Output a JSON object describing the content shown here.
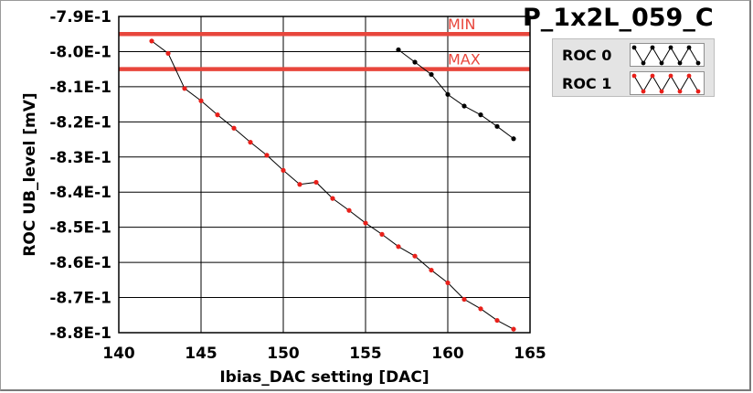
{
  "chart_data": {
    "type": "line",
    "title": "P_1x2L_059_C",
    "xlabel": "Ibias_DAC setting [DAC]",
    "ylabel": "ROC UB_level [mV]",
    "xlim": [
      140,
      165
    ],
    "ylim": [
      -0.88,
      -0.79
    ],
    "x_ticks": [
      140,
      145,
      150,
      155,
      160,
      165
    ],
    "y_ticks": [
      -0.79,
      -0.8,
      -0.81,
      -0.82,
      -0.83,
      -0.84,
      -0.85,
      -0.86,
      -0.87,
      -0.88
    ],
    "x_tick_labels": [
      "140",
      "145",
      "150",
      "155",
      "160",
      "165"
    ],
    "y_tick_labels": [
      "-7.9E-1",
      "-8.0E-1",
      "-8.1E-1",
      "-8.2E-1",
      "-8.3E-1",
      "-8.4E-1",
      "-8.5E-1",
      "-8.6E-1",
      "-8.7E-1",
      "-8.8E-1"
    ],
    "grid": true,
    "legend_placement": "right-top",
    "reference_lines": [
      {
        "label": "MIN",
        "y": -0.795,
        "color": "#e8463c"
      },
      {
        "label": "MAX",
        "y": -0.805,
        "color": "#e8463c"
      }
    ],
    "series": [
      {
        "name": "ROC 0",
        "color": "#000000",
        "x": [
          157,
          158,
          159,
          160,
          161,
          162,
          163,
          164
        ],
        "y": [
          -0.7995,
          -0.803,
          -0.8065,
          -0.8122,
          -0.8155,
          -0.818,
          -0.8213,
          -0.8248
        ]
      },
      {
        "name": "ROC 1",
        "color": "#e8201a",
        "x": [
          142,
          143,
          144,
          145,
          146,
          147,
          148,
          149,
          150,
          151,
          152,
          153,
          154,
          155,
          156,
          157,
          158,
          159,
          160,
          161,
          162,
          163,
          164
        ],
        "y": [
          -0.797,
          -0.8005,
          -0.8105,
          -0.814,
          -0.818,
          -0.8218,
          -0.8258,
          -0.8295,
          -0.8338,
          -0.8378,
          -0.8372,
          -0.8418,
          -0.8452,
          -0.8488,
          -0.852,
          -0.8555,
          -0.8582,
          -0.8622,
          -0.8658,
          -0.8705,
          -0.8732,
          -0.8765,
          -0.879
        ]
      }
    ]
  }
}
